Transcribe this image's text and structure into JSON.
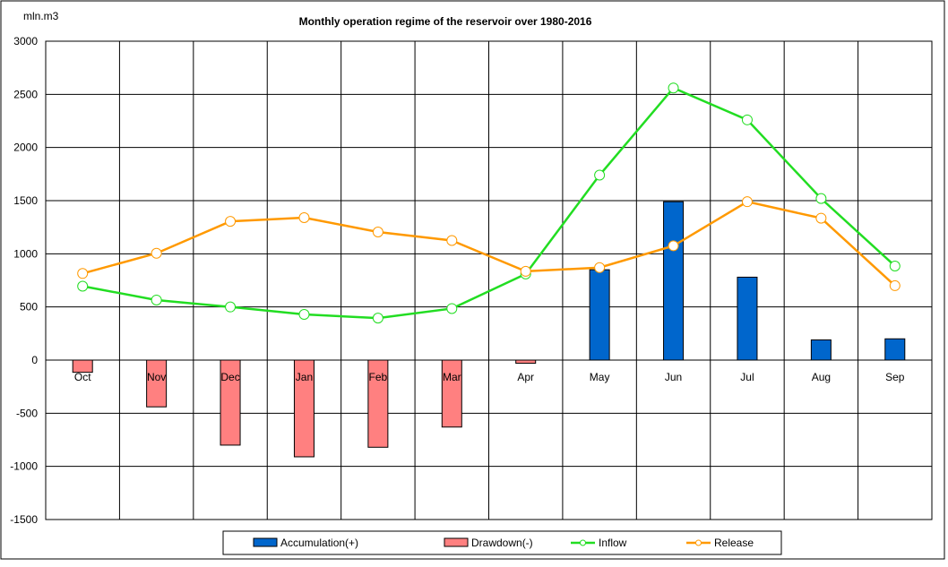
{
  "chart_data": {
    "type": "bar",
    "title": "Monthly operation regime of the reservoir over 1980-2016",
    "ylabel": "mln.m3",
    "xlabel": "",
    "ylim": [
      -1500,
      3000
    ],
    "ytick_step": 500,
    "grid": true,
    "legend_position": "bottom",
    "categories": [
      "Oct",
      "Nov",
      "Dec",
      "Jan",
      "Feb",
      "Mar",
      "Apr",
      "May",
      "Jun",
      "Jul",
      "Aug",
      "Sep"
    ],
    "series": [
      {
        "name": "Accumulation(+)",
        "kind": "bar",
        "color": "#0066cc",
        "values": [
          0,
          0,
          0,
          0,
          0,
          0,
          0,
          850,
          1490,
          780,
          190,
          200
        ]
      },
      {
        "name": "Drawdown(-)",
        "kind": "bar",
        "color": "#ff8080",
        "values": [
          -115,
          -440,
          -800,
          -910,
          -820,
          -630,
          -30,
          0,
          0,
          0,
          0,
          0
        ]
      },
      {
        "name": "Inflow",
        "kind": "line",
        "color": "#22dd22",
        "values": [
          695,
          565,
          500,
          430,
          395,
          485,
          810,
          1740,
          2560,
          2260,
          1520,
          885
        ]
      },
      {
        "name": "Release",
        "kind": "line",
        "color": "#ff9900",
        "values": [
          815,
          1005,
          1305,
          1340,
          1205,
          1125,
          835,
          870,
          1075,
          1490,
          1335,
          700
        ]
      }
    ]
  }
}
